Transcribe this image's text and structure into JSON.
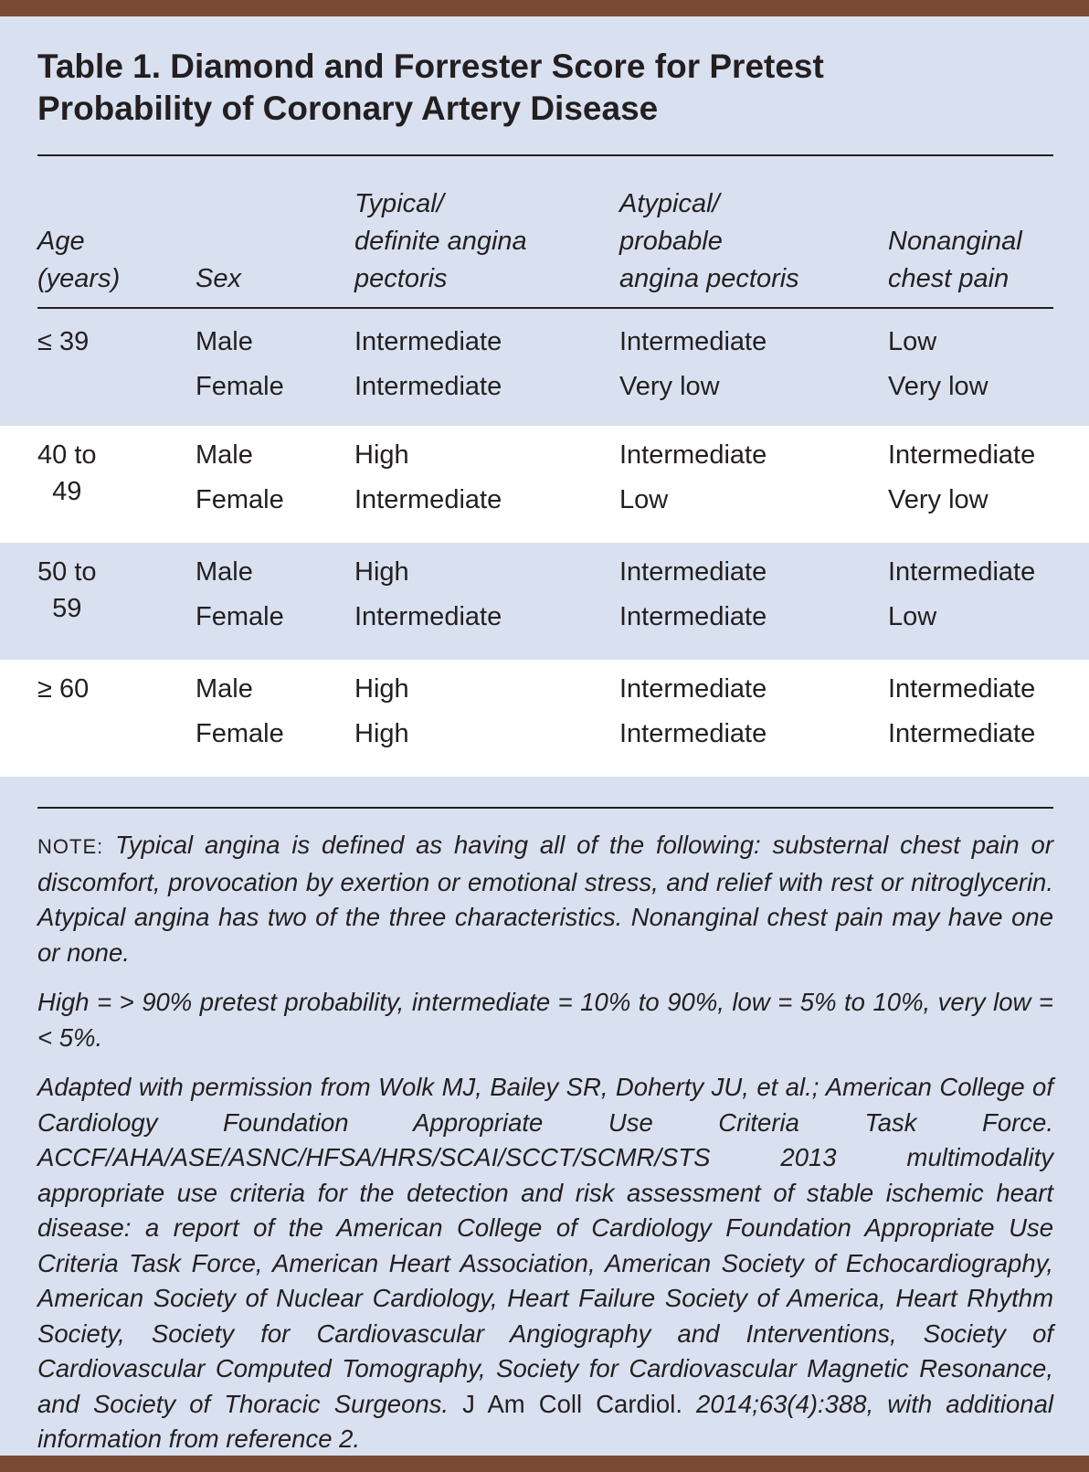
{
  "header": {
    "title": "Table 1. Diamond and Forrester Score for Pretest Probability of Coronary Artery Disease"
  },
  "table": {
    "columns": [
      [
        "Age",
        "(years)"
      ],
      [
        "Sex"
      ],
      [
        "Typical/",
        "definite angina",
        "pectoris"
      ],
      [
        "Atypical/",
        "probable",
        "angina pectoris"
      ],
      [
        "Nonanginal",
        "chest pain"
      ]
    ],
    "groups": [
      {
        "age": [
          "≤ 39"
        ],
        "rows": [
          [
            "Male",
            "Intermediate",
            "Intermediate",
            "Low"
          ],
          [
            "Female",
            "Intermediate",
            "Very low",
            "Very low"
          ]
        ]
      },
      {
        "age": [
          "40 to",
          "49"
        ],
        "rows": [
          [
            "Male",
            "High",
            "Intermediate",
            "Intermediate"
          ],
          [
            "Female",
            "Intermediate",
            "Low",
            "Very low"
          ]
        ]
      },
      {
        "age": [
          "50 to",
          "59"
        ],
        "rows": [
          [
            "Male",
            "High",
            "Intermediate",
            "Intermediate"
          ],
          [
            "Female",
            "Intermediate",
            "Intermediate",
            "Low"
          ]
        ]
      },
      {
        "age": [
          "≥ 60"
        ],
        "rows": [
          [
            "Male",
            "High",
            "Intermediate",
            "Intermediate"
          ],
          [
            "Female",
            "High",
            "Intermediate",
            "Intermediate"
          ]
        ]
      }
    ]
  },
  "notes": {
    "label": "NOTE:",
    "note": "Typical angina is defined as having all of the following: substernal chest pain or discomfort, provocation by exertion or emotional stress, and relief with rest or nitroglycerin. Atypical angina has two of the three characteristics. Nonanginal chest pain may have one or none.",
    "definitions": "High = > 90% pretest probability, intermediate = 10% to 90%, low = 5% to 10%, very low = < 5%.",
    "source": [
      {
        "text": "Adapted with permission from Wolk MJ, Bailey SR, Doherty JU, et al.; American College of Cardiology Foundation Appropriate Use Criteria Task Force. ACCF/AHA/ASE/ASNC/HFSA/HRS/SCAI/SCCT/SCMR/STS 2013 multimodality appropriate use criteria for the detection and risk assessment of stable ischemic heart disease: a report of the American College of Cardiology Foundation Appropriate Use Criteria Task Force, American Heart Association, American Society of Echocardiography, American Society of Nuclear Cardiology, Heart Failure Society of America, Heart Rhythm Society, Society for Cardiovascular Angiography and Interventions, Society of Cardiovascular Computed Tomography, Society for Cardiovascular Magnetic Resonance, and Society of Thoracic Surgeons.",
        "italic": true
      },
      {
        "text": " J Am Coll Cardiol. ",
        "italic": false
      },
      {
        "text": "2014;63(4):388, with additional information from reference 2.",
        "italic": true
      }
    ]
  }
}
